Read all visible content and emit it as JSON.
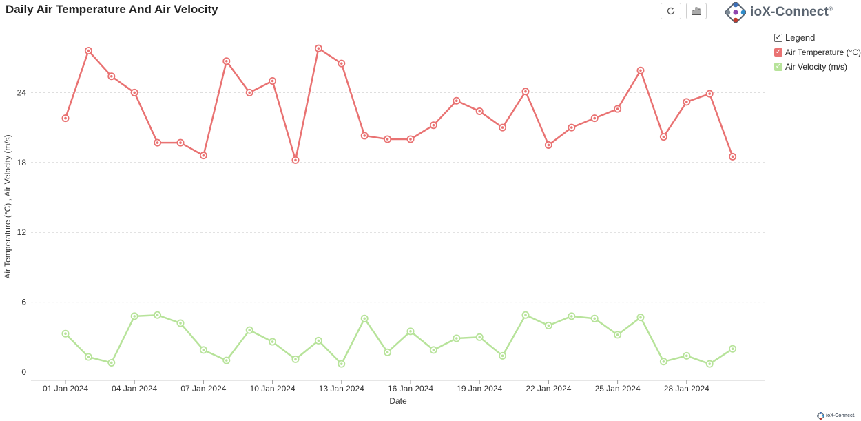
{
  "title": "Daily Air Temperature And Air Velocity",
  "toolbar": {
    "refresh_icon": "refresh-icon",
    "chart_icon": "bar-chart-icon"
  },
  "brand": {
    "name": "ioX-Connect",
    "mark": "®",
    "footer": "ioX-Connect."
  },
  "legend": {
    "title": "Legend",
    "items": [
      {
        "label": "Air Temperature (°C)",
        "color": "#e97272"
      },
      {
        "label": "Air Velocity (m/s)",
        "color": "#b7e39a"
      }
    ]
  },
  "chart_data": {
    "type": "line",
    "title": "Daily Air Temperature And Air Velocity",
    "xlabel": "Date",
    "ylabel": "Air Temperature (°C) , Air Velocity (m/s)",
    "ylim": [
      0,
      24
    ],
    "yticks": [
      0,
      6,
      12,
      18,
      24
    ],
    "grid": true,
    "legend_position": "top-right",
    "x": [
      "01 Jan 2024",
      "02 Jan 2024",
      "03 Jan 2024",
      "04 Jan 2024",
      "05 Jan 2024",
      "06 Jan 2024",
      "07 Jan 2024",
      "08 Jan 2024",
      "09 Jan 2024",
      "10 Jan 2024",
      "11 Jan 2024",
      "12 Jan 2024",
      "13 Jan 2024",
      "14 Jan 2024",
      "15 Jan 2024",
      "16 Jan 2024",
      "17 Jan 2024",
      "18 Jan 2024",
      "19 Jan 2024",
      "20 Jan 2024",
      "21 Jan 2024",
      "22 Jan 2024",
      "23 Jan 2024",
      "24 Jan 2024",
      "25 Jan 2024",
      "26 Jan 2024",
      "27 Jan 2024",
      "28 Jan 2024",
      "29 Jan 2024",
      "30 Jan 2024"
    ],
    "xtick_labels": [
      "01 Jan 2024",
      "04 Jan 2024",
      "07 Jan 2024",
      "10 Jan 2024",
      "13 Jan 2024",
      "16 Jan 2024",
      "19 Jan 2024",
      "22 Jan 2024",
      "25 Jan 2024",
      "28 Jan 2024"
    ],
    "series": [
      {
        "name": "Air Temperature (°C)",
        "color": "#e97272",
        "values": [
          21.8,
          27.6,
          25.4,
          24.0,
          19.7,
          19.7,
          18.6,
          26.7,
          24.0,
          25.0,
          18.2,
          27.8,
          26.5,
          20.3,
          20.0,
          20.0,
          21.2,
          23.3,
          22.4,
          21.0,
          24.1,
          19.5,
          21.0,
          21.8,
          22.6,
          25.9,
          20.2,
          23.2,
          23.9,
          18.5
        ]
      },
      {
        "name": "Air Velocity (m/s)",
        "color": "#b7e39a",
        "values": [
          3.3,
          1.3,
          0.8,
          4.8,
          4.9,
          4.2,
          1.9,
          1.0,
          3.6,
          2.6,
          1.1,
          2.7,
          0.7,
          4.6,
          1.7,
          3.5,
          1.9,
          2.9,
          3.0,
          1.4,
          4.9,
          4.0,
          4.8,
          4.6,
          3.2,
          4.7,
          0.9,
          1.4,
          0.7,
          2.0
        ]
      }
    ]
  }
}
